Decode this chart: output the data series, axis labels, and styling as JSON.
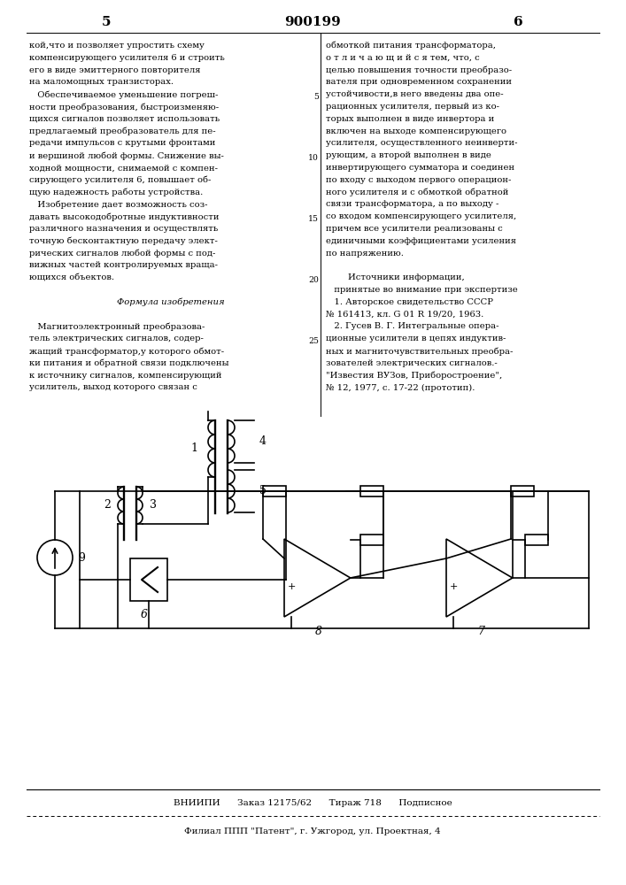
{
  "bg_color": "#ffffff",
  "page_number_left": "5",
  "page_number_center": "900199",
  "page_number_right": "6",
  "col1_lines": [
    "кой,что и позволяет упростить схему",
    "компенсирующего усилителя 6 и строить",
    "его в виде эмиттерного повторителя",
    "на маломощных транзисторах.",
    "   Обеспечиваемое уменьшение погреш-",
    "ности преобразования, быстроизменяю-",
    "щихся сигналов позволяет использовать",
    "предлагаемый преобразователь для пе-",
    "редачи импульсов с крутыми фронтами",
    "и вершиной любой формы. Снижение вы-",
    "ходной мощности, снимаемой с компен-",
    "сирующего усилителя 6, повышает об-",
    "щую надежность работы устройства.",
    "   Изобретение дает возможность соз-",
    "давать высокодобротные индуктивности",
    "различного назначения и осуществлять",
    "точную бесконтактную передачу элект-",
    "рических сигналов любой формы с под-",
    "вижных частей контролируемых враща-",
    "ющихся объектов.",
    "",
    "         Формула изобретения",
    "",
    "   Магнитоэлектронный преобразова-",
    "тель электрических сигналов, содер-",
    "жащий трансформатор,у которого обмот-",
    "ки питания и обратной связи подключены",
    "к источнику сигналов, компенсирующий",
    "усилитель, выход которого связан с"
  ],
  "col2_lines": [
    "обмоткой питания трансформатора,",
    "о т л и ч а ю щ и й с я тем, что, с",
    "целью повышения точности преобразо-",
    "вателя при одновременном сохранении",
    "устойчивости,в него введены два опе-",
    "рационных усилителя, первый из ко-",
    "торых выполнен в виде инвертора и",
    "включен на выходе компенсирующего",
    "усилителя, осуществленного неинверти-",
    "рующим, а второй выполнен в виде",
    "инвертирующего сумматора и соединен",
    "по входу с выходом первого операцион-",
    "ного усилителя и с обмоткой обратной",
    "связи трансформатора, а по выходу -",
    "со входом компенсирующего усилителя,",
    "причем все усилители реализованы с",
    "единичными коэффициентами усиления",
    "по напряжению.",
    "",
    "        Источники информации,",
    "   принятые во внимание при экспертизе",
    "   1. Авторское свидетельство СССР",
    "№ 161413, кл. G 01 R 19/20, 1963.",
    "   2. Гусев В. Г. Интегральные опера-",
    "ционные усилители в цепях индуктив-",
    "ных и магниточувствительных преобра-",
    "зователей электрических сигналов.-",
    "\"Известия ВУЗов, Приборостроение\",",
    "№ 12, 1977, с. 17-22 (прототип)."
  ],
  "footer_line1": "ВНИИПИ      Заказ 12175/62      Тираж 718      Подписное",
  "footer_line2": "Филиал ППП \"Патент\", г. Ужгород, ул. Проектная, 4"
}
